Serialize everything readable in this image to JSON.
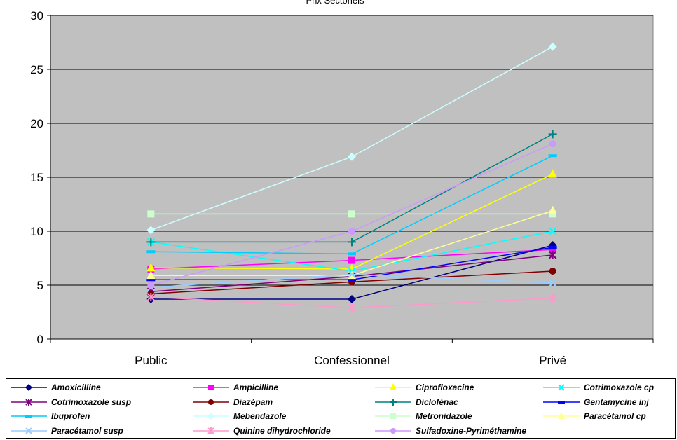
{
  "chart_data": {
    "type": "line",
    "title": "Prix Sectoriels",
    "xlabel": "",
    "ylabel": "",
    "categories": [
      "Public",
      "Confessionnel",
      "Privé"
    ],
    "ylim": [
      0,
      30
    ],
    "yticks": [
      0,
      5,
      10,
      15,
      20,
      25,
      30
    ],
    "grid": true,
    "legend_position": "bottom",
    "plot_background": "#c0c0c0",
    "series": [
      {
        "name": "Amoxicilline",
        "values": [
          3.7,
          3.7,
          8.7
        ],
        "color": "#000080",
        "marker": "diamond"
      },
      {
        "name": "Ampicilline",
        "values": [
          6.5,
          7.3,
          8.3
        ],
        "color": "#ff00ff",
        "marker": "square"
      },
      {
        "name": "Ciprofloxacine",
        "values": [
          6.6,
          6.5,
          15.3
        ],
        "color": "#ffff00",
        "marker": "triangle"
      },
      {
        "name": "Cotrimoxazole cp",
        "values": [
          9.0,
          6.3,
          10.0
        ],
        "color": "#00ffff",
        "marker": "x"
      },
      {
        "name": "Cotrimoxazole susp",
        "values": [
          4.4,
          5.8,
          7.8
        ],
        "color": "#800080",
        "marker": "star"
      },
      {
        "name": "Diazépam",
        "values": [
          4.2,
          5.3,
          6.3
        ],
        "color": "#800000",
        "marker": "circle"
      },
      {
        "name": "Diclofénac",
        "values": [
          9.0,
          9.0,
          19.0
        ],
        "color": "#008080",
        "marker": "plus"
      },
      {
        "name": "Gentamycine inj",
        "values": [
          5.5,
          5.5,
          8.5
        ],
        "color": "#0000ff",
        "marker": "dash"
      },
      {
        "name": "Ibuprofen",
        "values": [
          8.1,
          7.9,
          17.0
        ],
        "color": "#00ccff",
        "marker": "dash"
      },
      {
        "name": "Mebendazole",
        "values": [
          10.1,
          16.9,
          27.1
        ],
        "color": "#ccffff",
        "marker": "diamond"
      },
      {
        "name": "Metronidazole",
        "values": [
          11.6,
          11.6,
          11.6
        ],
        "color": "#ccffcc",
        "marker": "square"
      },
      {
        "name": "Paracétamol cp",
        "values": [
          5.9,
          5.9,
          11.9
        ],
        "color": "#ffff99",
        "marker": "triangle"
      },
      {
        "name": "Paracétamol susp",
        "values": [
          4.8,
          6.0,
          5.2
        ],
        "color": "#99ccff",
        "marker": "x"
      },
      {
        "name": "Quinine dihydrochloride",
        "values": [
          3.9,
          2.9,
          3.8
        ],
        "color": "#ff99cc",
        "marker": "star"
      },
      {
        "name": "Sulfadoxine-Pyriméthamine",
        "values": [
          5.0,
          10.0,
          18.1
        ],
        "color": "#cc99ff",
        "marker": "circle"
      }
    ]
  }
}
